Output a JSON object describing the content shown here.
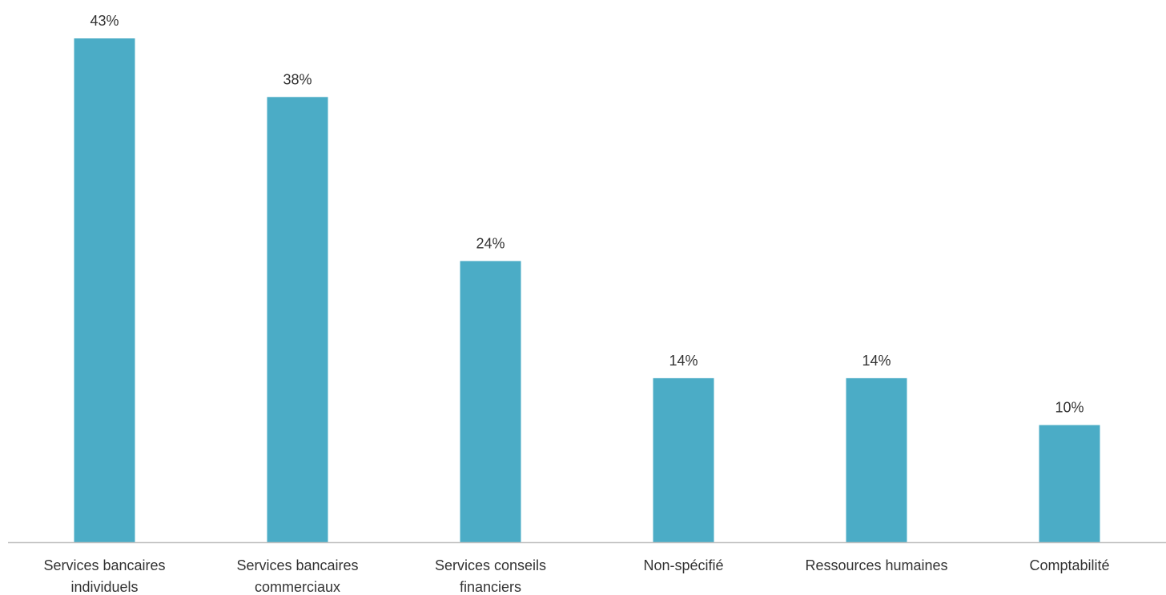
{
  "chart_data": {
    "type": "bar",
    "categories": [
      [
        "Services bancaires",
        "individuels"
      ],
      [
        "Services bancaires",
        "commerciaux"
      ],
      [
        "Services conseils",
        "financiers"
      ],
      [
        "Non-spécifié"
      ],
      [
        "Ressources humaines"
      ],
      [
        "Comptabilité"
      ]
    ],
    "values": [
      43,
      38,
      24,
      14,
      14,
      10
    ],
    "value_labels": [
      "43%",
      "38%",
      "24%",
      "14%",
      "14%",
      "10%"
    ],
    "unit": "%",
    "ylim": [
      0,
      43
    ],
    "grid": false,
    "legend": "none",
    "bar_color": "#4BACC6",
    "axis_color": "#BFBFBF"
  }
}
